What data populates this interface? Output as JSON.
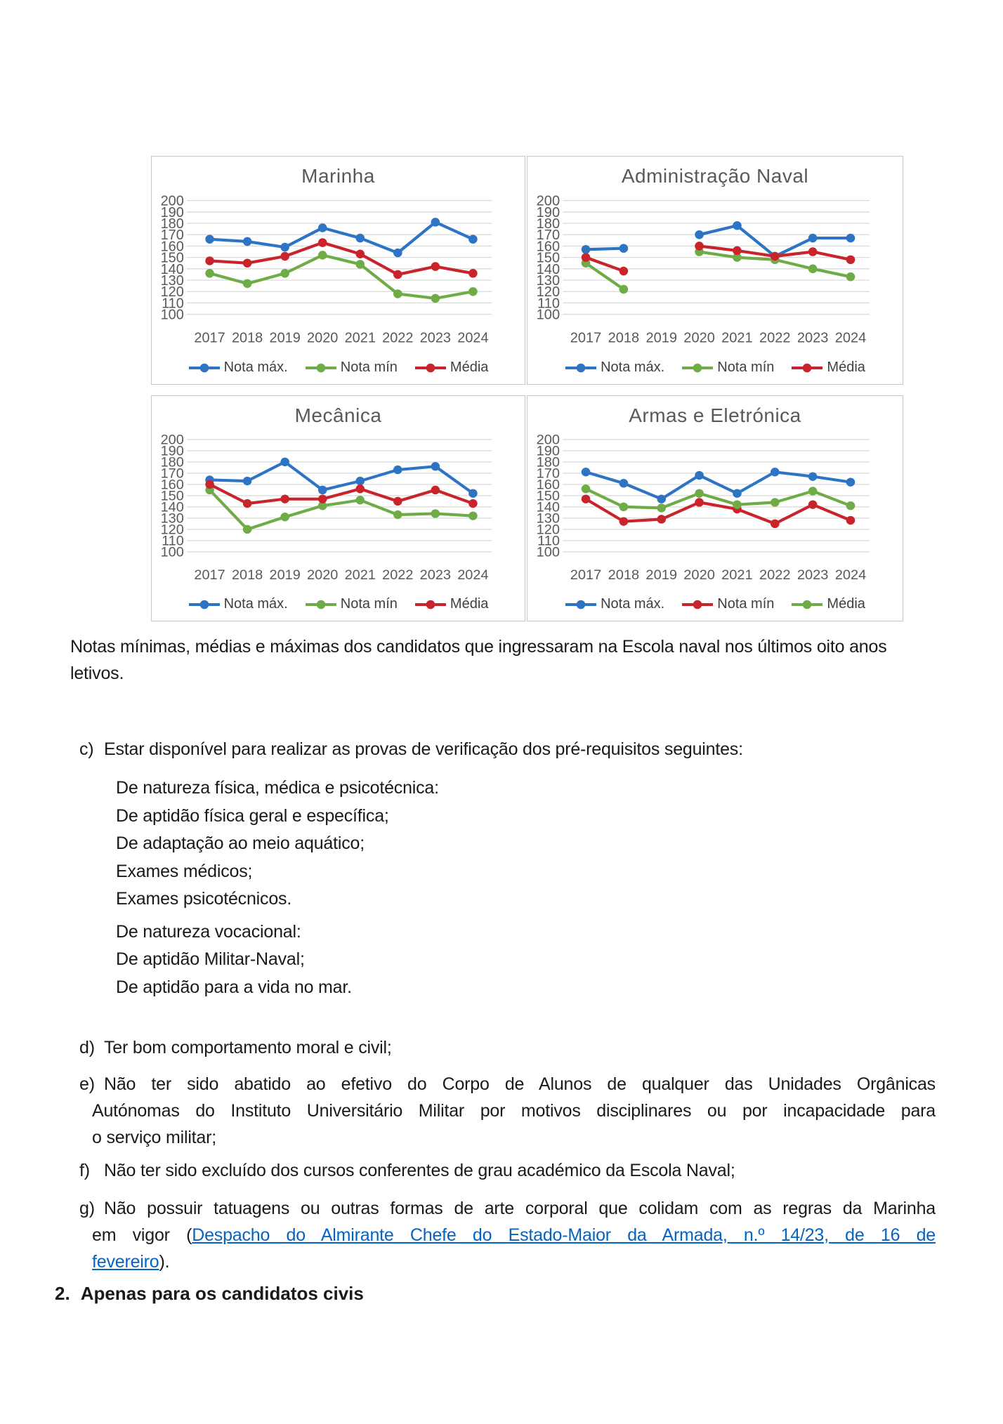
{
  "colors": {
    "link": "#0563C1",
    "series_blue": "#2E74C4",
    "series_green": "#6FAC47",
    "series_red": "#C9232B"
  },
  "chart_data": [
    {
      "type": "line",
      "title": "Marinha",
      "categories": [
        "2017",
        "2018",
        "2019",
        "2020",
        "2021",
        "2022",
        "2023",
        "2024"
      ],
      "ylim": [
        100,
        200
      ],
      "ytick_step": 10,
      "grid": true,
      "legend_position": "bottom",
      "series": [
        {
          "name": "Nota máx.",
          "color": "#2E74C4",
          "values": [
            166,
            164,
            159,
            176,
            167,
            154,
            181,
            166
          ]
        },
        {
          "name": "Nota mín",
          "color": "#6FAC47",
          "values": [
            136,
            127,
            136,
            152,
            144,
            118,
            114,
            120
          ]
        },
        {
          "name": "Média",
          "color": "#C9232B",
          "values": [
            147,
            145,
            151,
            163,
            153,
            135,
            142,
            136
          ]
        }
      ]
    },
    {
      "type": "line",
      "title": "Administração Naval",
      "categories": [
        "2017",
        "2018",
        "2019",
        "2020",
        "2021",
        "2022",
        "2023",
        "2024"
      ],
      "ylim": [
        100,
        200
      ],
      "ytick_step": 10,
      "grid": true,
      "legend_position": "bottom",
      "series": [
        {
          "name": "Nota máx.",
          "color": "#2E74C4",
          "values": [
            157,
            158,
            null,
            170,
            178,
            151,
            167,
            167
          ]
        },
        {
          "name": "Nota mín",
          "color": "#6FAC47",
          "values": [
            145,
            122,
            null,
            155,
            150,
            148,
            140,
            133
          ]
        },
        {
          "name": "Média",
          "color": "#C9232B",
          "values": [
            150,
            138,
            null,
            160,
            156,
            151,
            155,
            148
          ]
        }
      ]
    },
    {
      "type": "line",
      "title": "Mecânica",
      "categories": [
        "2017",
        "2018",
        "2019",
        "2020",
        "2021",
        "2022",
        "2023",
        "2024"
      ],
      "ylim": [
        100,
        200
      ],
      "ytick_step": 10,
      "grid": true,
      "legend_position": "bottom",
      "series": [
        {
          "name": "Nota máx.",
          "color": "#2E74C4",
          "values": [
            164,
            163,
            180,
            155,
            163,
            173,
            176,
            152
          ]
        },
        {
          "name": "Nota mín",
          "color": "#6FAC47",
          "values": [
            155,
            120,
            131,
            141,
            146,
            133,
            134,
            132
          ]
        },
        {
          "name": "Média",
          "color": "#C9232B",
          "values": [
            160,
            143,
            147,
            147,
            156,
            145,
            155,
            143
          ]
        }
      ]
    },
    {
      "type": "line",
      "title": "Armas e Eletrónica",
      "categories": [
        "2017",
        "2018",
        "2019",
        "2020",
        "2021",
        "2022",
        "2023",
        "2024"
      ],
      "ylim": [
        100,
        200
      ],
      "ytick_step": 10,
      "grid": true,
      "legend_position": "bottom",
      "series": [
        {
          "name": "Nota máx.",
          "color": "#2E74C4",
          "values": [
            171,
            161,
            147,
            168,
            152,
            171,
            167,
            162
          ]
        },
        {
          "name": "Nota mín",
          "color": "#C9232B",
          "values": [
            147,
            127,
            129,
            144,
            138,
            125,
            142,
            128
          ]
        },
        {
          "name": "Média",
          "color": "#6FAC47",
          "values": [
            156,
            140,
            139,
            152,
            142,
            144,
            154,
            141
          ]
        }
      ]
    }
  ],
  "figure": {
    "caption": {
      "justify": false,
      "lines": [
        "Notas mínimas, médias e máximas dos candidatos que ingressaram na Escola naval nos últimos oito anos",
        "letivos."
      ]
    }
  },
  "body": {
    "item_c": {
      "marker": "c)",
      "justify": false,
      "lines": [
        "Estar disponível para realizar as provas de verificação dos pré-requisitos seguintes:"
      ]
    },
    "sub_items": [
      "De natureza física, médica e psicotécnica:",
      "De aptidão física geral e específica;",
      "De adaptação ao meio aquático;",
      "Exames médicos;",
      "Exames psicotécnicos.",
      "De natureza vocacional:",
      "De aptidão Militar-Naval;",
      "De aptidão para a vida no mar."
    ],
    "item_d": {
      "marker": "d)",
      "justify": false,
      "lines": [
        "Ter bom comportamento moral e civil;"
      ]
    },
    "item_e": {
      "marker": "e)",
      "justify": true,
      "lines": [
        "Não ter sido abatido ao efetivo do Corpo de Alunos de qualquer das Unidades Orgânicas",
        "Autónomas do Instituto Universitário Militar por motivos disciplinares ou por incapacidade para",
        "o serviço militar;"
      ]
    },
    "item_f": {
      "marker": "f)",
      "justify": false,
      "lines": [
        "Não ter sido excluído dos cursos conferentes de grau académico da Escola Naval;"
      ]
    },
    "item_g": {
      "marker": "g)",
      "justify": true,
      "lines": [
        [
          {
            "t": "Não possuir tatuagens ou outras formas de arte corporal que colidam com as regras da Marinha"
          }
        ],
        [
          {
            "t": "em vigor ("
          },
          {
            "t": "Despacho do Almirante Chefe do Estado-Maior da Armada, n.º 14/23, de 16 de",
            "link": true
          }
        ],
        [
          {
            "t": "fevereiro",
            "link": true
          },
          {
            "t": ")."
          }
        ]
      ]
    },
    "section_2": {
      "marker": "2.",
      "text": "Apenas para os candidatos civis"
    }
  }
}
